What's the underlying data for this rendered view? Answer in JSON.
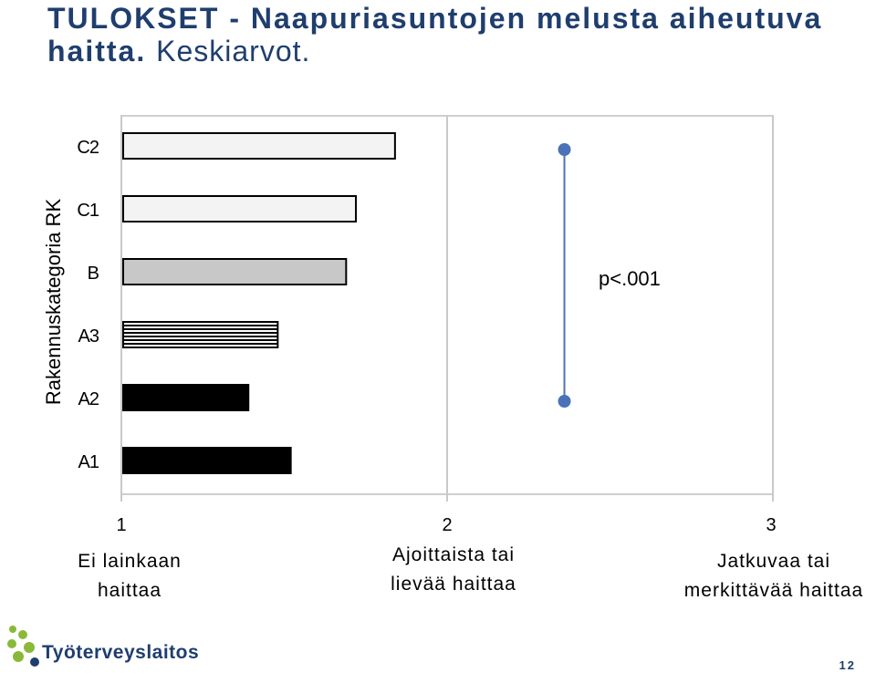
{
  "header": {
    "title_bold": "TULOKSET - Naapuriasuntojen melusta aiheutuva haitta.",
    "title_normal": "Keskiarvot."
  },
  "chart_data": {
    "type": "bar",
    "orientation": "horizontal",
    "ylabel": "Rakennuskategoria RK",
    "categories": [
      "C2",
      "C1",
      "B",
      "A3",
      "A2",
      "A1"
    ],
    "values": [
      1.84,
      1.72,
      1.69,
      1.48,
      1.39,
      1.52
    ],
    "fills": [
      "#f3f3f3",
      "#f3f3f3",
      "#c8c8c8",
      "stripes",
      "#000000",
      "#000000"
    ],
    "xlim": [
      1,
      3
    ],
    "xticks": [
      {
        "value": 1,
        "label": "1",
        "desc": [
          "Ei lainkaan",
          "haittaa"
        ]
      },
      {
        "value": 2,
        "label": "2",
        "desc": [
          "Ajoittaista tai",
          "lievää haittaa"
        ]
      },
      {
        "value": 3,
        "label": "3",
        "desc": [
          "Jatkuvaa tai",
          "merkittävää haittaa"
        ]
      }
    ],
    "grid": true,
    "significance": {
      "text": "p<.001",
      "x": 2.36,
      "from_category": "C2",
      "to_category": "A2",
      "color": "#4a72b8"
    }
  },
  "footer": {
    "logo_text": "Työterveyslaitos",
    "logo_colors": [
      "#8ab93a",
      "#1f3e6e"
    ],
    "page_number": "12"
  }
}
